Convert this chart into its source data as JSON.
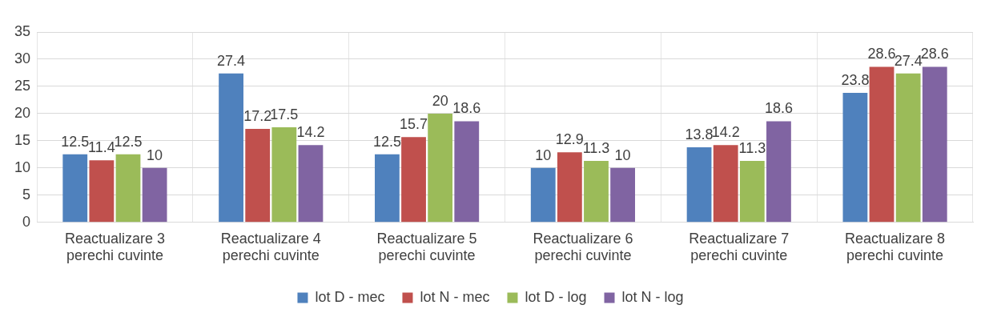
{
  "chart_data": {
    "type": "bar",
    "categories": [
      "Reactualizare 3 perechi cuvinte",
      "Reactualizare 4 perechi cuvinte",
      "Reactualizare 5 perechi cuvinte",
      "Reactualizare 6 perechi cuvinte",
      "Reactualizare 7 perechi cuvinte",
      "Reactualizare 8 perechi cuvinte"
    ],
    "series": [
      {
        "name": "lot D - mec",
        "color": "#4f81bd",
        "values": [
          12.5,
          27.4,
          12.5,
          10,
          13.8,
          23.8
        ]
      },
      {
        "name": "lot N - mec",
        "color": "#c0504d",
        "values": [
          11.4,
          17.2,
          15.7,
          12.9,
          14.2,
          28.6
        ]
      },
      {
        "name": "lot D - log",
        "color": "#9bbb59",
        "values": [
          12.5,
          17.5,
          20,
          11.3,
          11.3,
          27.4
        ]
      },
      {
        "name": "lot N - log",
        "color": "#8064a2",
        "values": [
          10,
          14.2,
          18.6,
          10,
          18.6,
          28.6
        ]
      }
    ],
    "ylim": [
      0,
      35
    ],
    "yticks": [
      0,
      5,
      10,
      15,
      20,
      25,
      30,
      35
    ],
    "grid": true,
    "legend": "bottom",
    "data_labels": true
  }
}
